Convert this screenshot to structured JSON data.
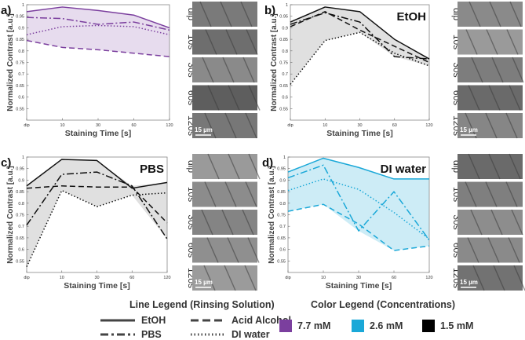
{
  "chart_data": [
    {
      "panel": "a)",
      "type": "line",
      "title": "",
      "xlabel": "Staining Time [s]",
      "ylabel": "Normalized Contrast [a.u.]",
      "categories": [
        "dip",
        "10",
        "30",
        "60",
        "120"
      ],
      "ylim": [
        0.5,
        1.0
      ],
      "yticks": [
        "0.55",
        "0.6",
        "0.65",
        "0.7",
        "0.75",
        "0.8",
        "0.85",
        "0.9",
        "0.95",
        "1"
      ],
      "fill_color": "#7b3f9e",
      "fill_opacity": 0.18,
      "series": [
        {
          "name": "EtOH",
          "style": "solid",
          "values": [
            0.97,
            0.99,
            0.975,
            0.955,
            0.9
          ]
        },
        {
          "name": "PBS",
          "style": "dashdot",
          "values": [
            0.945,
            0.94,
            0.915,
            0.925,
            0.89
          ]
        },
        {
          "name": "DI water",
          "style": "dotted",
          "values": [
            0.87,
            0.905,
            0.91,
            0.905,
            0.87
          ]
        },
        {
          "name": "Acid Alcohol",
          "style": "dashed",
          "values": [
            0.845,
            0.815,
            0.805,
            0.79,
            0.775
          ]
        }
      ],
      "image_labels": [
        "dip",
        "10s",
        "30s",
        "60s",
        "120s"
      ],
      "scale_bar": "15 µm"
    },
    {
      "panel": "b)",
      "type": "line",
      "title": "EtOH",
      "xlabel": "Staining Time [s]",
      "ylabel": "Normalized Contrast [a.u.]",
      "categories": [
        "dip",
        "10",
        "30",
        "60",
        "120"
      ],
      "ylim": [
        0.5,
        1.0
      ],
      "yticks": [
        "0.55",
        "0.6",
        "0.65",
        "0.7",
        "0.75",
        "0.8",
        "0.85",
        "0.9",
        "0.95",
        "1"
      ],
      "fill_color": "#000000",
      "fill_opacity": 0.12,
      "series": [
        {
          "name": "EtOH",
          "style": "solid",
          "values": [
            0.925,
            0.99,
            0.97,
            0.85,
            0.765
          ]
        },
        {
          "name": "PBS",
          "style": "dashdot",
          "values": [
            0.915,
            0.965,
            0.925,
            0.775,
            0.765
          ]
        },
        {
          "name": "DI water",
          "style": "dotted",
          "values": [
            0.655,
            0.845,
            0.88,
            0.79,
            0.735
          ]
        },
        {
          "name": "Acid Alcohol",
          "style": "dashed",
          "values": [
            0.905,
            0.97,
            0.89,
            0.82,
            0.75
          ]
        }
      ],
      "image_labels": [
        "dip",
        "10s",
        "30s",
        "60s",
        "120s"
      ],
      "scale_bar": "15 µm"
    },
    {
      "panel": "c)",
      "type": "line",
      "title": "PBS",
      "xlabel": "Staining Time [s]",
      "ylabel": "Normalized Contrast [a.u.]",
      "categories": [
        "dip",
        "10",
        "30",
        "60",
        "120"
      ],
      "ylim": [
        0.5,
        1.0
      ],
      "yticks": [
        "0.55",
        "0.6",
        "0.65",
        "0.7",
        "0.75",
        "0.8",
        "0.85",
        "0.9",
        "0.95",
        "1"
      ],
      "fill_color": "#000000",
      "fill_opacity": 0.12,
      "series": [
        {
          "name": "EtOH",
          "style": "solid",
          "values": [
            0.875,
            0.99,
            0.985,
            0.865,
            0.89
          ]
        },
        {
          "name": "PBS",
          "style": "dashdot",
          "values": [
            0.705,
            0.925,
            0.935,
            0.875,
            0.645
          ]
        },
        {
          "name": "DI water",
          "style": "dotted",
          "values": [
            0.525,
            0.855,
            0.785,
            0.835,
            0.845
          ]
        },
        {
          "name": "Acid Alcohol",
          "style": "dashed",
          "values": [
            0.865,
            0.875,
            0.87,
            0.87,
            0.715
          ]
        }
      ],
      "image_labels": [
        "dip",
        "10s",
        "30s",
        "60s",
        "120s"
      ],
      "scale_bar": "15 µm"
    },
    {
      "panel": "d)",
      "type": "line",
      "title": "DI water",
      "xlabel": "Staining Time [s]",
      "ylabel": "Normalized Contrast [a.u.]",
      "categories": [
        "dip",
        "10",
        "30",
        "60",
        "120"
      ],
      "ylim": [
        0.5,
        1.0
      ],
      "yticks": [
        "0.55",
        "0.6",
        "0.65",
        "0.7",
        "0.75",
        "0.8",
        "0.85",
        "0.9",
        "0.95",
        "1"
      ],
      "fill_color": "#1aa8d8",
      "fill_opacity": 0.22,
      "series": [
        {
          "name": "EtOH",
          "style": "solid",
          "values": [
            0.935,
            0.995,
            0.955,
            0.905,
            0.905
          ]
        },
        {
          "name": "PBS",
          "style": "dashdot",
          "values": [
            0.91,
            0.965,
            0.68,
            0.85,
            0.64
          ]
        },
        {
          "name": "DI water",
          "style": "dotted",
          "values": [
            0.855,
            0.905,
            0.86,
            0.76,
            0.645
          ]
        },
        {
          "name": "Acid Alcohol",
          "style": "dashed",
          "values": [
            0.765,
            0.795,
            0.71,
            0.595,
            0.615
          ]
        }
      ],
      "image_labels": [
        "dip",
        "10s",
        "30s",
        "60s",
        "120s"
      ],
      "scale_bar": "15 µm"
    }
  ],
  "legend": {
    "line_title": "Line Legend (Rinsing Solution)",
    "line_items": [
      "EtOH",
      "Acid Alcohol",
      "PBS",
      "DI water"
    ],
    "color_title": "Color Legend (Concentrations)",
    "color_items": [
      {
        "label": "7.7 mM",
        "color": "#7b3f9e"
      },
      {
        "label": "2.6 mM",
        "color": "#1aa8d8"
      },
      {
        "label": "1.5 mM",
        "color": "#000000"
      }
    ]
  }
}
